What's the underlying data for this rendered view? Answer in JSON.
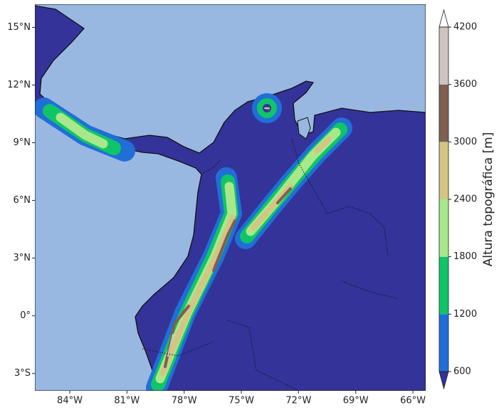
{
  "map": {
    "xlim": [
      -85.83,
      -65.33
    ],
    "ylim": [
      -3.9,
      16.2
    ],
    "xticks": [
      {
        "value": -84,
        "label": "84°W"
      },
      {
        "value": -81,
        "label": "81°W"
      },
      {
        "value": -78,
        "label": "78°W"
      },
      {
        "value": -75,
        "label": "75°W"
      },
      {
        "value": -72,
        "label": "72°W"
      },
      {
        "value": -69,
        "label": "69°W"
      },
      {
        "value": -66,
        "label": "66°W"
      }
    ],
    "yticks": [
      {
        "value": 15,
        "label": "15°N"
      },
      {
        "value": 12,
        "label": "12°N"
      },
      {
        "value": 9,
        "label": "9°N"
      },
      {
        "value": 6,
        "label": "6°N"
      },
      {
        "value": 3,
        "label": "3°N"
      },
      {
        "value": 0,
        "label": "0°"
      },
      {
        "value": -3,
        "label": "3°S"
      }
    ]
  },
  "colorbar": {
    "label": "Altura topográfica [m]",
    "ticks": [
      600,
      1200,
      1800,
      2400,
      3000,
      3600,
      4200
    ],
    "colors": [
      "#333399",
      "#1f6fd6",
      "#10c46a",
      "#a8e88a",
      "#d4c585",
      "#7f5f50",
      "#d0c4c0",
      "#ffffff"
    ]
  }
}
